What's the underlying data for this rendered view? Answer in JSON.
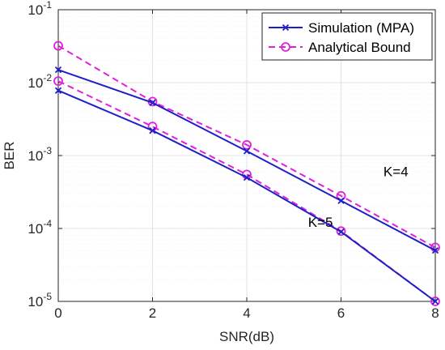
{
  "chart_data": {
    "type": "line",
    "xlabel": "SNR(dB)",
    "ylabel": "BER",
    "x_scale": "linear",
    "y_scale": "log",
    "xlim": [
      0,
      8
    ],
    "ylim": [
      1e-05,
      0.1
    ],
    "x_ticks": [
      0,
      2,
      4,
      6,
      8
    ],
    "y_tick_exponents": [
      -1,
      -2,
      -3,
      -4,
      -5
    ],
    "y_tick_base": "10",
    "grid": true,
    "legend_position": "top-right",
    "series": [
      {
        "name": "Simulation (MPA)",
        "group": "K=4",
        "color": "#1f1fc8",
        "line_style": "solid",
        "marker": "x",
        "x": [
          0,
          2,
          4,
          6,
          8
        ],
        "y": [
          0.015,
          0.0053,
          0.00115,
          0.00024,
          5e-05
        ]
      },
      {
        "name": "Analytical Bound",
        "group": "K=4",
        "color": "#e020d8",
        "line_style": "dashed",
        "marker": "o",
        "x": [
          0,
          2,
          4,
          6,
          8
        ],
        "y": [
          0.032,
          0.0055,
          0.0014,
          0.00028,
          5.5e-05
        ]
      },
      {
        "name": "Simulation (MPA)",
        "group": "K=5",
        "color": "#1f1fc8",
        "line_style": "solid",
        "marker": "x",
        "x": [
          0,
          2,
          4,
          6,
          8
        ],
        "y": [
          0.0078,
          0.0022,
          0.0005,
          9e-05,
          1e-05
        ]
      },
      {
        "name": "Analytical Bound",
        "group": "K=5",
        "color": "#e020d8",
        "line_style": "dashed",
        "marker": "o",
        "x": [
          0,
          2,
          4,
          6,
          8
        ],
        "y": [
          0.0105,
          0.0025,
          0.00055,
          9.2e-05,
          1e-05
        ]
      }
    ],
    "legend": [
      {
        "label": "Simulation (MPA)",
        "color": "#1f1fc8",
        "line_style": "solid",
        "marker": "x"
      },
      {
        "label": "Analytical Bound",
        "color": "#e020d8",
        "line_style": "dashed",
        "marker": "o"
      }
    ],
    "annotations": [
      {
        "text": "K=4",
        "x": 6.9,
        "y": 0.00052
      },
      {
        "text": "K=5",
        "x": 5.3,
        "y": 0.000105
      }
    ]
  }
}
